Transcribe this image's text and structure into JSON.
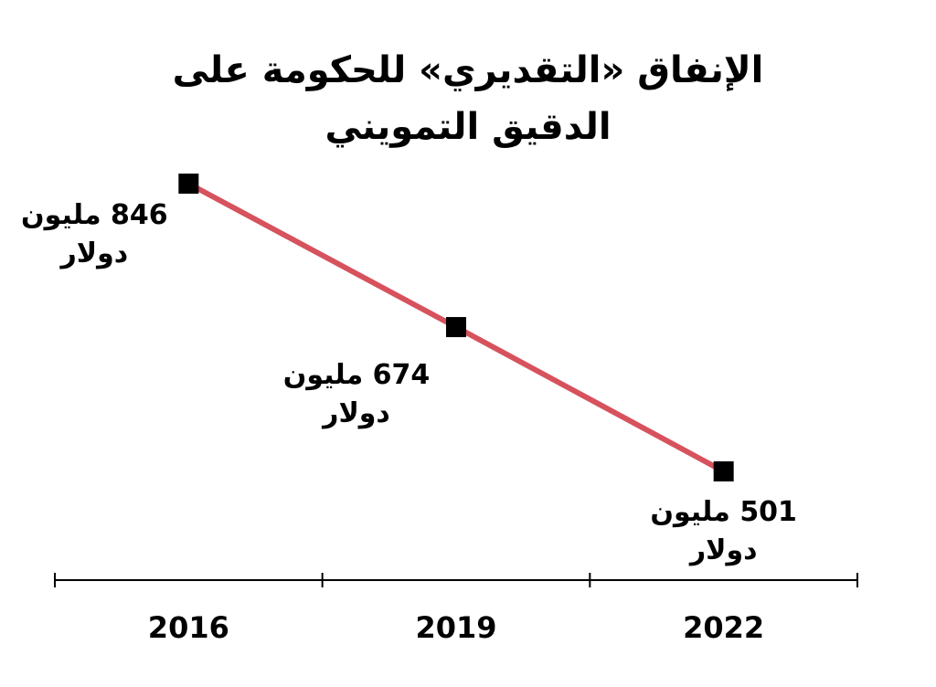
{
  "chart_data": {
    "type": "line",
    "title": "الإنفاق «التقديري» للحكومة على الدقيق التمويني",
    "categories": [
      "2016",
      "2019",
      "2022"
    ],
    "values": [
      846,
      674,
      501
    ],
    "value_labels": [
      "846 مليون دولار",
      "674 مليون دولار",
      "501 مليون دولار"
    ],
    "color": "#d6525d",
    "marker_color": "#000000"
  }
}
